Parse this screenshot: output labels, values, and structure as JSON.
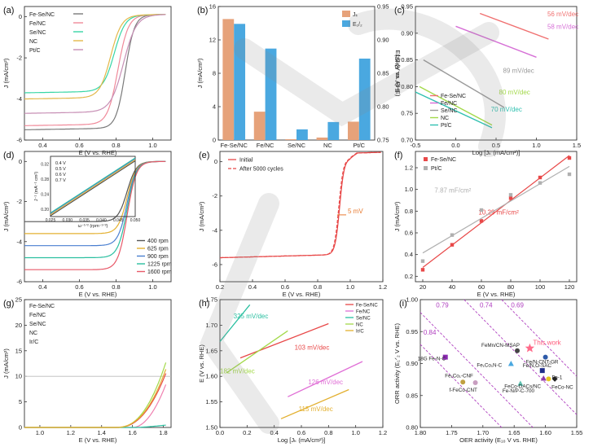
{
  "chart_data": [
    {
      "id": "a",
      "panel": "(a)",
      "type": "line",
      "xlabel": "E (V vs. RHE)",
      "ylabel": "J (mA/cm²)",
      "xlim": [
        0.3,
        1.1
      ],
      "ylim": [
        -6,
        0.5
      ],
      "xticks": [
        "0.4",
        "0.6",
        "0.8",
        "1.0"
      ],
      "yticks": [
        "0",
        "-2",
        "-4",
        "-6"
      ],
      "series": [
        {
          "name": "Fe-Se/NC",
          "color": "#7a7a7a",
          "params": {
            "jl": -5.5,
            "e0": 0.85,
            "k": 0.025
          }
        },
        {
          "name": "Fe/NC",
          "color": "#f08a9a",
          "params": {
            "jl": -5.3,
            "e0": 0.81,
            "k": 0.028
          }
        },
        {
          "name": "Se/NC",
          "color": "#38d6a6",
          "params": {
            "jl": -3.7,
            "e0": 0.79,
            "k": 0.03
          }
        },
        {
          "name": "NC",
          "color": "#e3b84a",
          "params": {
            "jl": -4.0,
            "e0": 0.77,
            "k": 0.03
          }
        },
        {
          "name": "Pt/C",
          "color": "#c78fb5",
          "params": {
            "jl": -4.7,
            "e0": 0.84,
            "k": 0.035
          }
        }
      ]
    },
    {
      "id": "b",
      "panel": "(b)",
      "type": "bar",
      "categories": [
        "Fe-Se/NC",
        "Fe/NC",
        "Se/NC",
        "NC",
        "Pt/C"
      ],
      "ylabel": "J (mA/cm²)",
      "ylabel_right": "E1/2 (V vs. RHE)",
      "ylim": [
        0,
        16
      ],
      "ylim_right": [
        0.75,
        0.95
      ],
      "yticks": [
        "0",
        "4",
        "8",
        "12",
        "16"
      ],
      "yticks_right": [
        "0.75",
        "0.80",
        "0.85",
        "0.90",
        "0.95"
      ],
      "series": [
        {
          "name": "Jk",
          "color": "#e6a27a",
          "values": [
            14.5,
            3.4,
            0.1,
            0.3,
            2.2
          ]
        },
        {
          "name": "E1/2",
          "color": "#4aa8e0",
          "values": [
            0.924,
            0.887,
            0.766,
            0.777,
            0.872
          ]
        }
      ],
      "legend": [
        "Jₖ",
        "E₁/₂"
      ]
    },
    {
      "id": "c",
      "panel": "(c)",
      "type": "line",
      "xlabel": "Log [Jₖ (mA/cm²)]",
      "ylabel": "E (V vs. RHE)",
      "xlim": [
        -0.5,
        1.5
      ],
      "ylim": [
        0.7,
        0.95
      ],
      "xticks": [
        "-0.5",
        "0.0",
        "0.5",
        "1.0",
        "1.5"
      ],
      "yticks": [
        "0.70",
        "0.75",
        "0.80",
        "0.85",
        "0.90",
        "0.95"
      ],
      "series": [
        {
          "name": "Fe-Se/NC",
          "color": "#f07070",
          "x": [
            0.3,
            1.15
          ],
          "y": [
            0.937,
            0.889
          ],
          "label": "56 mV/dec"
        },
        {
          "name": "Fe/NC",
          "color": "#d66fd6",
          "x": [
            0.0,
            1.0
          ],
          "y": [
            0.913,
            0.855
          ],
          "label": "58 mV/dec"
        },
        {
          "name": "Se/NC",
          "color": "#9a9a9a",
          "x": [
            -0.4,
            0.6
          ],
          "y": [
            0.85,
            0.761
          ],
          "label": "89 mV/dec"
        },
        {
          "name": "NC",
          "color": "#a3d94a",
          "x": [
            -0.45,
            0.45
          ],
          "y": [
            0.8,
            0.728
          ],
          "label": "80 mV/dec"
        },
        {
          "name": "Pt/C",
          "color": "#30c0b0",
          "x": [
            -0.5,
            0.45
          ],
          "y": [
            0.79,
            0.723
          ],
          "label": "70 mV/dec"
        }
      ]
    },
    {
      "id": "d",
      "panel": "(d)",
      "type": "line",
      "xlabel": "E (V vs. RHE)",
      "ylabel": "J (mA/cm²)",
      "xlim": [
        0.3,
        1.1
      ],
      "ylim": [
        -6,
        0.5
      ],
      "xticks": [
        "0.4",
        "0.6",
        "0.8",
        "1.0"
      ],
      "yticks": [
        "0",
        "-2",
        "-4",
        "-6"
      ],
      "series": [
        {
          "name": "400 rpm",
          "color": "#555555",
          "params": {
            "jl": -3.0,
            "e0": 0.86,
            "k": 0.025
          }
        },
        {
          "name": "625 rpm",
          "color": "#e3b030",
          "params": {
            "jl": -3.6,
            "e0": 0.86,
            "k": 0.025
          }
        },
        {
          "name": "900 rpm",
          "color": "#4a7fd0",
          "params": {
            "jl": -4.2,
            "e0": 0.86,
            "k": 0.025
          }
        },
        {
          "name": "1225 rpm",
          "color": "#2abfa0",
          "params": {
            "jl": -4.8,
            "e0": 0.86,
            "k": 0.025
          }
        },
        {
          "name": "1600 rpm",
          "color": "#e85a6a",
          "params": {
            "jl": -5.4,
            "e0": 0.86,
            "k": 0.025
          }
        }
      ]
    },
    {
      "id": "d_inset",
      "type": "line",
      "xlabel": "ω⁻¹ᐟ² (rpm⁻¹ᐟ²)",
      "ylabel": "J⁻¹ (mA⁻¹ cm²)",
      "xlim": [
        0.025,
        0.05
      ],
      "ylim": [
        0.18,
        0.34
      ],
      "xticks": [
        "0.025",
        "0.030",
        "0.035",
        "0.040",
        "0.045",
        "0.050"
      ],
      "yticks": [
        "0.20",
        "0.24",
        "0.28",
        "0.32"
      ],
      "series": [
        {
          "name": "0.4 V",
          "color": "#444444",
          "x": [
            0.025,
            0.05
          ],
          "y": [
            0.182,
            0.328
          ]
        },
        {
          "name": "0.5 V",
          "color": "#e3b030",
          "x": [
            0.025,
            0.05
          ],
          "y": [
            0.185,
            0.331
          ]
        },
        {
          "name": "0.6 V",
          "color": "#4a7fd0",
          "x": [
            0.025,
            0.05
          ],
          "y": [
            0.188,
            0.334
          ]
        },
        {
          "name": "0.7 V",
          "color": "#2abfa0",
          "x": [
            0.025,
            0.05
          ],
          "y": [
            0.19,
            0.336
          ]
        }
      ]
    },
    {
      "id": "e",
      "panel": "(e)",
      "type": "line",
      "xlabel": "E (V vs. RHE)",
      "ylabel": "J (mA/cm²)",
      "xlim": [
        0.2,
        1.2
      ],
      "ylim": [
        -7,
        0.6
      ],
      "xticks": [
        "0.2",
        "0.4",
        "0.6",
        "0.8",
        "1.0",
        "1.2"
      ],
      "yticks": [
        "0",
        "-2",
        "-4",
        "-6"
      ],
      "series": [
        {
          "name": "Initial",
          "color": "#e84848",
          "dash": false,
          "params": {
            "jl": -5.6,
            "e0": 0.935,
            "k": 0.014,
            "slope": 1.2
          }
        },
        {
          "name": "After 5000 cycles",
          "color": "#e84848",
          "dash": true,
          "params": {
            "jl": -5.6,
            "e0": 0.93,
            "k": 0.014,
            "slope": 1.2
          }
        }
      ],
      "annotation": "5 mV"
    },
    {
      "id": "f",
      "panel": "(f)",
      "type": "scatter",
      "xlabel": "E (V vs. RHE)",
      "ylabel": "J (mA/cm²)",
      "xlim": [
        15,
        125
      ],
      "ylim": [
        0.15,
        1.35
      ],
      "xticks": [
        "20",
        "40",
        "60",
        "80",
        "100",
        "120"
      ],
      "yticks": [
        "0.2",
        "0.4",
        "0.6",
        "0.8",
        "1.0",
        "1.2"
      ],
      "series": [
        {
          "name": "Fe-Se/NC",
          "color": "#e84848",
          "x": [
            20,
            40,
            60,
            80,
            100,
            120
          ],
          "y": [
            0.26,
            0.49,
            0.71,
            0.92,
            1.11,
            1.29
          ],
          "label": "10.29 mF/cm²"
        },
        {
          "name": "Pt/C",
          "color": "#b0b0b0",
          "x": [
            20,
            40,
            60,
            80,
            100,
            120
          ],
          "y": [
            0.34,
            0.58,
            0.81,
            0.95,
            1.06,
            1.14
          ],
          "label": "7.87 mF/cm²"
        }
      ]
    },
    {
      "id": "g",
      "panel": "(g)",
      "type": "line",
      "xlabel": "E (V vs. RHE)",
      "ylabel": "J (mA/cm²)",
      "xlim": [
        0.9,
        1.85
      ],
      "ylim": [
        0,
        25
      ],
      "xticks": [
        "1.0",
        "1.2",
        "1.4",
        "1.6",
        "1.8"
      ],
      "yticks": [
        "0",
        "5",
        "10",
        "15",
        "20",
        "25"
      ],
      "ref_line": 10,
      "series": [
        {
          "name": "Fe-Se/NC",
          "color": "#e84848",
          "params": {
            "eon": 1.5,
            "a": 0.75,
            "p": 2.3
          }
        },
        {
          "name": "Fe/NC",
          "color": "#f080b0",
          "params": {
            "eon": 1.6,
            "a": 1.8,
            "p": 2.0
          }
        },
        {
          "name": "Se/NC",
          "color": "#2abfa0",
          "params": {
            "eon": 1.62,
            "a": 0.18,
            "p": 1.4
          }
        },
        {
          "name": "NC",
          "color": "#a3d94a",
          "params": {
            "eon": 1.5,
            "a": 0.9,
            "p": 2.3
          }
        },
        {
          "name": "Ir/C",
          "color": "#e3b030",
          "params": {
            "eon": 1.48,
            "a": 0.55,
            "p": 2.5
          }
        }
      ]
    },
    {
      "id": "h",
      "panel": "(h)",
      "type": "line",
      "xlabel": "Log [Jₖ (mA/cm²)]",
      "ylabel": "E (V vs. RHE)",
      "xlim": [
        0.0,
        1.2
      ],
      "ylim": [
        1.5,
        1.75
      ],
      "xticks": [
        "0.0",
        "0.2",
        "0.4",
        "0.6",
        "0.8",
        "1.0",
        "1.2"
      ],
      "yticks": [
        "1.50",
        "1.55",
        "1.60",
        "1.65",
        "1.70",
        "1.75"
      ],
      "series": [
        {
          "name": "Fe-Se/NC",
          "color": "#e84848",
          "x": [
            0.15,
            0.8
          ],
          "y": [
            1.636,
            1.703
          ],
          "label": "103 mV/dec"
        },
        {
          "name": "Fe/NC",
          "color": "#e06fd6",
          "x": [
            0.5,
            1.05
          ],
          "y": [
            1.56,
            1.629
          ],
          "label": "126 mV/dec"
        },
        {
          "name": "Se/NC",
          "color": "#2abfa0",
          "x": [
            0.0,
            0.22
          ],
          "y": [
            1.668,
            1.74
          ],
          "label": "325 mV/dec"
        },
        {
          "name": "NC",
          "color": "#a3d94a",
          "x": [
            0.05,
            0.5
          ],
          "y": [
            1.607,
            1.689
          ],
          "label": "182 mV/dec"
        },
        {
          "name": "Ir/C",
          "color": "#e3b030",
          "x": [
            0.45,
            0.95
          ],
          "y": [
            1.517,
            1.574
          ],
          "label": "115 mV/dec"
        }
      ]
    },
    {
      "id": "i",
      "panel": "(i)",
      "type": "scatter",
      "xlabel": "OER activity (E₁₀ V vs. RHE)",
      "ylabel": "ORR activity (E₁ᐟ₂ V vs. RHE)",
      "xlim": [
        1.5,
        1.8
      ],
      "ylim": [
        0.8,
        1.0
      ],
      "xticks": [
        "1.80",
        "1.75",
        "1.70",
        "1.65",
        "1.60",
        "1.55"
      ],
      "yticks": [
        "0.80",
        "0.85",
        "0.90",
        "0.95",
        "1.00"
      ],
      "diagonals": [
        "0.79",
        "0.74",
        "0.69",
        "0.84"
      ],
      "points": [
        {
          "name": "This work",
          "color": "#ff6b8a",
          "shape": "star",
          "x": 1.625,
          "y": 0.924
        },
        {
          "name": "FeMn/CN-MSAP",
          "color": "#444444",
          "shape": "circle",
          "x": 1.645,
          "y": 0.92
        },
        {
          "name": "Fe/N-CNT-GR",
          "color": "#2d5aa8",
          "shape": "circle",
          "x": 1.6,
          "y": 0.91
        },
        {
          "name": "18G Fe-N-C",
          "color": "#8a2ab0",
          "shape": "square",
          "x": 1.76,
          "y": 0.91
        },
        {
          "name": "Fe₁Co₁N-C",
          "color": "#4aa8e0",
          "shape": "triangle",
          "x": 1.655,
          "y": 0.9
        },
        {
          "name": "Fe/N,O-SAC",
          "color": "#1e2d8a",
          "shape": "square",
          "x": 1.605,
          "y": 0.889
        },
        {
          "name": "Fe-1",
          "color": "#e8c820",
          "shape": "circle",
          "x": 1.595,
          "y": 0.876
        },
        {
          "name": "FeCo-DACs/NC",
          "color": "#8e3aa8",
          "shape": "triangle",
          "x": 1.603,
          "y": 0.877
        },
        {
          "name": "FeCo-NC",
          "color": "#222222",
          "shape": "diamond",
          "x": 1.585,
          "y": 0.876
        },
        {
          "name": "Fe₁Co₁-CNF",
          "color": "#c0a040",
          "shape": "circle",
          "x": 1.732,
          "y": 0.871
        },
        {
          "name": "f-FeCo-CNT",
          "color": "#c89ec0",
          "shape": "circle",
          "x": 1.712,
          "y": 0.87
        },
        {
          "name": "Fe-N/P-C-700",
          "color": "#60c0b0",
          "shape": "triangle",
          "x": 1.64,
          "y": 0.869
        }
      ]
    }
  ]
}
